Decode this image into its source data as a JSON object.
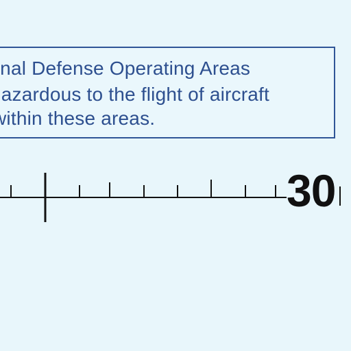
{
  "notice": {
    "lines": [
      "tional Defense Operating Areas",
      "hazardous to the flight of aircraft",
      "within these areas."
    ]
  },
  "scale": {
    "label": "30"
  },
  "colors": {
    "background": "#e8f6fb",
    "notice_text": "#2d4f8f",
    "notice_border": "#2f5597",
    "scale_ink": "#111111"
  }
}
